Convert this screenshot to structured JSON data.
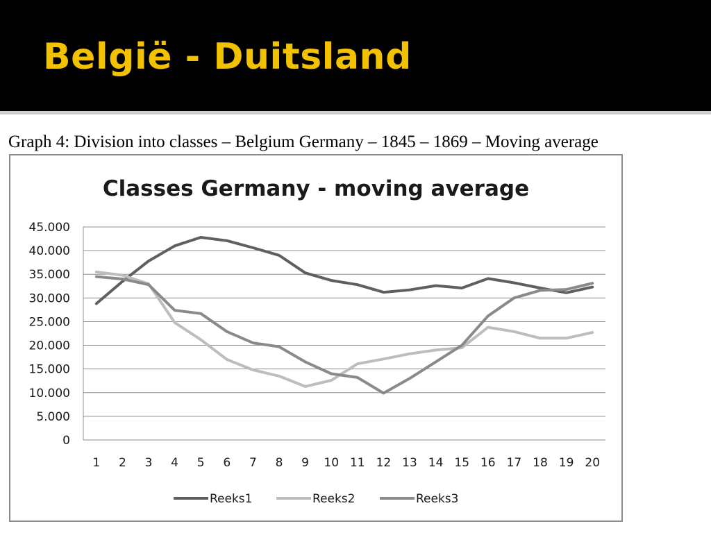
{
  "slide": {
    "title": "België - Duitsland",
    "caption": "Graph 4: Division into classes – Belgium Germany – 1845 – 1869 – Moving average"
  },
  "colors": {
    "header_bg": "#000000",
    "title": "#f2c200",
    "Reeks1": "#5f5f5f",
    "Reeks2": "#bdbdbd",
    "Reeks3": "#8a8a8a"
  },
  "chart_data": {
    "type": "line",
    "title": "Classes Germany - moving average",
    "xlabel": "",
    "ylabel": "",
    "categories": [
      "1",
      "2",
      "3",
      "4",
      "5",
      "6",
      "7",
      "8",
      "9",
      "10",
      "11",
      "12",
      "13",
      "14",
      "15",
      "16",
      "17",
      "18",
      "19",
      "20"
    ],
    "ylim": [
      0,
      45000
    ],
    "yticks": [
      "0",
      "5.000",
      "10.000",
      "15.000",
      "20.000",
      "25.000",
      "30.000",
      "35.000",
      "40.000",
      "45.000"
    ],
    "grid": true,
    "legend": "bottom",
    "series": [
      {
        "name": "Reeks1",
        "values": [
          28800,
          33500,
          37800,
          41000,
          42800,
          42100,
          40600,
          39000,
          35300,
          33700,
          32800,
          31200,
          31700,
          32600,
          32100,
          34100,
          33200,
          32100,
          31100,
          32300
        ]
      },
      {
        "name": "Reeks2",
        "values": [
          35500,
          34800,
          33000,
          24800,
          21200,
          17000,
          14800,
          13500,
          11300,
          12600,
          16100,
          17100,
          18200,
          19000,
          19500,
          23800,
          22900,
          21500,
          21500,
          22700
        ]
      },
      {
        "name": "Reeks3",
        "values": [
          34500,
          34000,
          32800,
          27400,
          26700,
          22900,
          20500,
          19700,
          16500,
          14000,
          13200,
          9900,
          13000,
          16500,
          20000,
          26200,
          30000,
          31600,
          31800,
          33100
        ]
      }
    ]
  }
}
